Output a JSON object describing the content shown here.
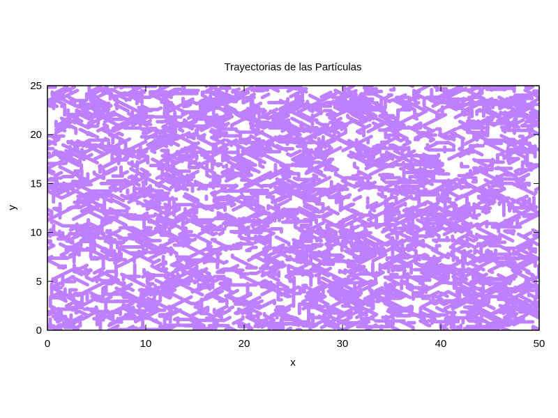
{
  "chart_data": {
    "type": "scatter",
    "title": "Trayectorias de las Partículas",
    "xlabel": "x",
    "ylabel": "y",
    "xlim": [
      0,
      50
    ],
    "ylim": [
      0,
      25
    ],
    "xticks": [
      0,
      10,
      20,
      30,
      40,
      50
    ],
    "yticks": [
      0,
      5,
      10,
      15,
      20,
      25
    ],
    "grid": false,
    "legend": "none",
    "series": [
      {
        "color": "#bf80ff",
        "description_values": "dense random-walk trajectories of many particles filling the whole domain",
        "trajectory_count": 2200,
        "step_count": 10,
        "seed": 12345
      }
    ]
  }
}
